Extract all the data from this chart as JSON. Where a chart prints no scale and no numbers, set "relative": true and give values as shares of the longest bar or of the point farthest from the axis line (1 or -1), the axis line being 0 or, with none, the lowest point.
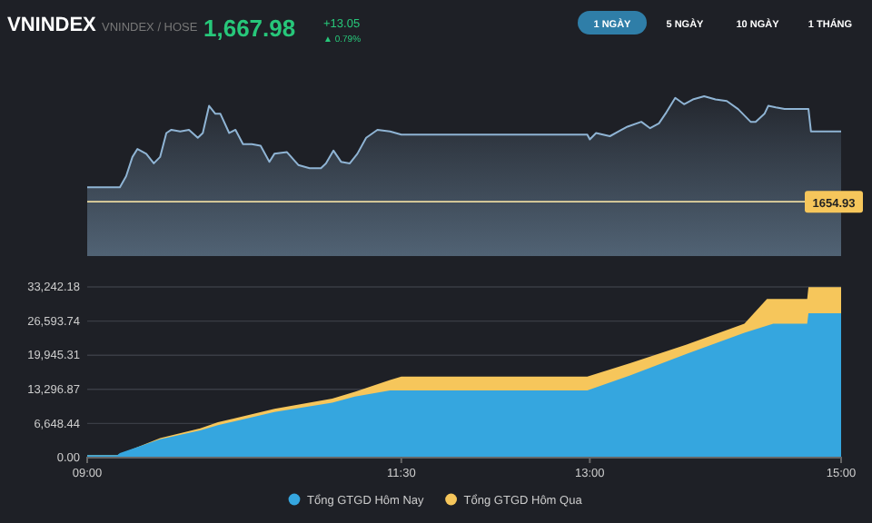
{
  "chart_data": [
    {
      "type": "area",
      "title": "VNINDEX",
      "subtitle": "VNINDEX / HOSE",
      "annotations": [
        "1,667.98",
        "+13.05",
        "▲ 0.79%",
        "1 NGÀY",
        "5 NGÀY",
        "10 NGÀY",
        "1 THÁNG",
        "1654.93"
      ],
      "x": [
        9.0,
        9.26,
        9.31,
        9.36,
        9.4,
        9.47,
        9.53,
        9.58,
        9.63,
        9.67,
        9.74,
        9.81,
        9.88,
        9.92,
        9.97,
        10.02,
        10.06,
        10.13,
        10.18,
        10.24,
        10.31,
        10.38,
        10.45,
        10.49,
        10.59,
        10.68,
        10.77,
        10.86,
        10.9,
        10.96,
        11.02,
        11.09,
        11.15,
        11.22,
        11.31,
        11.41,
        11.5,
        12.98,
        13.0,
        13.05,
        13.16,
        13.23,
        13.3,
        13.41,
        13.48,
        13.55,
        13.61,
        13.68,
        13.75,
        13.82,
        13.91,
        14.0,
        14.09,
        14.18,
        14.28,
        14.32,
        14.39,
        14.42,
        14.48,
        14.55,
        14.74,
        14.76,
        15.0
      ],
      "values": [
        0.43,
        0.43,
        0.5,
        0.62,
        0.67,
        0.64,
        0.58,
        0.62,
        0.77,
        0.79,
        0.78,
        0.79,
        0.74,
        0.77,
        0.94,
        0.89,
        0.89,
        0.77,
        0.79,
        0.7,
        0.7,
        0.69,
        0.59,
        0.64,
        0.65,
        0.57,
        0.55,
        0.55,
        0.58,
        0.66,
        0.59,
        0.58,
        0.64,
        0.74,
        0.79,
        0.78,
        0.76,
        0.76,
        0.73,
        0.77,
        0.75,
        0.78,
        0.81,
        0.84,
        0.8,
        0.83,
        0.9,
        0.99,
        0.95,
        0.98,
        1,
        0.98,
        0.97,
        0.92,
        0.84,
        0.84,
        0.89,
        0.94,
        0.93,
        0.92,
        0.92,
        0.78,
        0.78
      ],
      "color": "#8fb4d4",
      "xlim": [
        9,
        15
      ],
      "relative": true,
      "ref_lines": [
        {
          "axis": "y",
          "value": 0.34,
          "color": "#e8d9a0"
        }
      ]
    },
    {
      "type": "area",
      "xlim": [
        9,
        15
      ],
      "xticks": [
        {
          "value": 9,
          "label": "09:00"
        },
        {
          "value": 11.5,
          "label": "11:30"
        },
        {
          "value": 13,
          "label": "13:00"
        },
        {
          "value": 15,
          "label": "15:00"
        }
      ],
      "ylim": [
        0,
        33242.18
      ],
      "yticks": [
        {
          "value": 0,
          "label": "0.00"
        },
        {
          "value": 6648.44,
          "label": "6,648.44"
        },
        {
          "value": 13296.87,
          "label": "13,296.87"
        },
        {
          "value": 19945.31,
          "label": "19,945.31"
        },
        {
          "value": 26593.74,
          "label": "26,593.74"
        },
        {
          "value": 33242.18,
          "label": "33,242.18"
        }
      ],
      "grid": "y",
      "legend": "bottom",
      "series": [
        {
          "name": "Tổng GTGD Hôm Qua",
          "color": "#f6c65b",
          "x": [
            9.0,
            9.24,
            9.58,
            9.9,
            10.04,
            10.49,
            10.95,
            11.13,
            11.41,
            11.5,
            12.98,
            13.32,
            13.77,
            14.23,
            14.41,
            14.46,
            14.73,
            14.74,
            15.0
          ],
          "values": [
            500,
            500,
            3800,
            5700,
            6900,
            9500,
            11500,
            12800,
            15100,
            15800,
            15800,
            18400,
            22000,
            26100,
            30900,
            30900,
            30900,
            33200,
            33200
          ]
        },
        {
          "name": "Tổng GTGD Hôm Nay",
          "color": "#35a6df",
          "x": [
            9.0,
            9.24,
            9.26,
            9.58,
            9.9,
            10.04,
            10.49,
            10.95,
            11.13,
            11.41,
            11.5,
            12.98,
            13.32,
            13.77,
            14.23,
            14.46,
            14.73,
            14.74,
            15.0
          ],
          "values": [
            500,
            500,
            900,
            3600,
            5300,
            6300,
            8900,
            10700,
            11900,
            13100,
            13100,
            13100,
            16000,
            20200,
            24300,
            26100,
            26100,
            28100,
            28100
          ]
        }
      ]
    }
  ]
}
